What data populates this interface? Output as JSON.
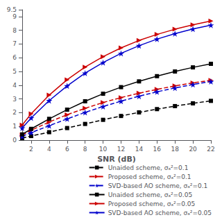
{
  "chart_data": {
    "type": "line",
    "xlabel": "SNR (dB)",
    "x": [
      1,
      2,
      4,
      6,
      8,
      10,
      12,
      14,
      16,
      18,
      20,
      22
    ],
    "xlim": [
      1,
      22
    ],
    "ylim": [
      0,
      9.5
    ],
    "xticks": [
      2,
      4,
      6,
      8,
      10,
      12,
      14,
      16,
      18,
      20,
      22
    ],
    "yticks": [
      0,
      1,
      2,
      3,
      4,
      5,
      6,
      7,
      8,
      9
    ],
    "grid": false,
    "legend": "lower right",
    "series": [
      {
        "name": "Unaided scheme, σₐ²=0.1",
        "color": "#000000",
        "line_style": "dashed",
        "marker": "square",
        "values": [
          0.15,
          0.3,
          0.58,
          0.88,
          1.18,
          1.48,
          1.76,
          2.02,
          2.26,
          2.48,
          2.68,
          2.86
        ]
      },
      {
        "name": "Proposed scheme, σₐ²=0.1",
        "color": "#cc0000",
        "line_style": "dashed",
        "marker": "triangle-right",
        "values": [
          0.38,
          0.72,
          1.32,
          1.85,
          2.32,
          2.74,
          3.1,
          3.42,
          3.7,
          3.95,
          4.17,
          4.36
        ]
      },
      {
        "name": "SVD-based AO scheme, σₐ²=0.1",
        "color": "#0000cc",
        "line_style": "dashed",
        "marker": "star",
        "values": [
          0.28,
          0.55,
          1.05,
          1.55,
          2.02,
          2.45,
          2.84,
          3.2,
          3.52,
          3.8,
          4.05,
          4.27
        ]
      },
      {
        "name": "Unaided scheme, σₐ²=0.05",
        "color": "#000000",
        "line_style": "solid",
        "marker": "square",
        "values": [
          0.42,
          0.82,
          1.55,
          2.22,
          2.83,
          3.38,
          3.86,
          4.28,
          4.66,
          5.0,
          5.3,
          5.56
        ]
      },
      {
        "name": "Proposed scheme, σₐ²=0.05",
        "color": "#cc0000",
        "line_style": "solid",
        "marker": "triangle-right",
        "values": [
          1.1,
          1.92,
          3.28,
          4.4,
          5.32,
          6.08,
          6.72,
          7.26,
          7.7,
          8.08,
          8.4,
          8.68
        ]
      },
      {
        "name": "SVD-based AO scheme, σₐ²=0.05",
        "color": "#0000cc",
        "line_style": "solid",
        "marker": "star",
        "values": [
          0.88,
          1.62,
          2.88,
          3.95,
          4.88,
          5.65,
          6.32,
          6.88,
          7.36,
          7.76,
          8.1,
          8.38
        ]
      }
    ]
  }
}
